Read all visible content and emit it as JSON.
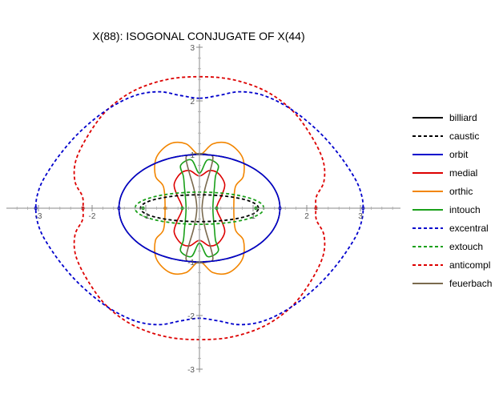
{
  "chart_data": {
    "type": "line",
    "title": "X(88): ISOGONAL CONJUGATE OF X(44)",
    "xlabel": "",
    "ylabel": "",
    "xlim": [
      -3.5,
      3.8
    ],
    "ylim": [
      -3.1,
      3.0
    ],
    "x_ticks": [
      {
        "value": -3,
        "label": "-3"
      },
      {
        "value": -2,
        "label": "-2"
      },
      {
        "value": -1,
        "label": "-1"
      },
      {
        "value": 1,
        "label": "1"
      },
      {
        "value": 2,
        "label": "2"
      },
      {
        "value": 3,
        "label": "3"
      }
    ],
    "y_ticks": [
      {
        "value": -3,
        "label": "-3"
      },
      {
        "value": -2,
        "label": "-2"
      },
      {
        "value": -1,
        "label": "-1"
      },
      {
        "value": 1,
        "label": "1"
      },
      {
        "value": 2,
        "label": "2"
      },
      {
        "value": 3,
        "label": "3"
      }
    ],
    "grid": false,
    "legend_position": "right",
    "series": [
      {
        "name": "billiard",
        "color": "#000000",
        "dashed": false,
        "kind": "ellipse",
        "a": 1.5,
        "b": 1.0
      },
      {
        "name": "caustic",
        "color": "#000000",
        "dashed": true,
        "kind": "ellipse",
        "a": 1.1,
        "b": 0.25
      },
      {
        "name": "orbit",
        "color": "#0000cc",
        "dashed": false,
        "kind": "ellipse",
        "a": 1.5,
        "b": 1.0
      },
      {
        "name": "medial",
        "color": "#dd0000",
        "dashed": false,
        "points": [
          [
            0,
            0.6
          ],
          [
            0.18,
            0.7
          ],
          [
            0.35,
            0.65
          ],
          [
            0.47,
            0.45
          ],
          [
            0.42,
            0.25
          ],
          [
            0.35,
            0.1
          ],
          [
            0.32,
            0.0
          ],
          [
            0.35,
            -0.1
          ],
          [
            0.42,
            -0.25
          ],
          [
            0.47,
            -0.45
          ],
          [
            0.35,
            -0.65
          ],
          [
            0.18,
            -0.7
          ],
          [
            0,
            -0.6
          ],
          [
            -0.18,
            -0.7
          ],
          [
            -0.35,
            -0.65
          ],
          [
            -0.47,
            -0.45
          ],
          [
            -0.42,
            -0.25
          ],
          [
            -0.35,
            -0.1
          ],
          [
            -0.32,
            0.0
          ],
          [
            -0.35,
            0.1
          ],
          [
            -0.42,
            0.25
          ],
          [
            -0.47,
            0.45
          ],
          [
            -0.35,
            0.65
          ],
          [
            -0.18,
            0.7
          ],
          [
            0,
            0.6
          ]
        ]
      },
      {
        "name": "orthic",
        "color": "#f28500",
        "dashed": false,
        "points": [
          [
            0,
            1.0
          ],
          [
            0.25,
            1.2
          ],
          [
            0.55,
            1.2
          ],
          [
            0.8,
            0.95
          ],
          [
            0.82,
            0.6
          ],
          [
            0.67,
            0.4
          ],
          [
            0.64,
            0.0
          ],
          [
            0.67,
            -0.4
          ],
          [
            0.82,
            -0.6
          ],
          [
            0.8,
            -0.95
          ],
          [
            0.55,
            -1.2
          ],
          [
            0.25,
            -1.2
          ],
          [
            0,
            -1.0
          ],
          [
            -0.25,
            -1.2
          ],
          [
            -0.55,
            -1.2
          ],
          [
            -0.8,
            -0.95
          ],
          [
            -0.82,
            -0.6
          ],
          [
            -0.67,
            -0.4
          ],
          [
            -0.64,
            0.0
          ],
          [
            -0.67,
            0.4
          ],
          [
            -0.82,
            0.6
          ],
          [
            -0.8,
            0.95
          ],
          [
            -0.55,
            1.2
          ],
          [
            -0.25,
            1.2
          ],
          [
            0,
            1.0
          ]
        ]
      },
      {
        "name": "intouch",
        "color": "#1aa01a",
        "dashed": false,
        "points": [
          [
            0,
            0.65
          ],
          [
            0.15,
            0.9
          ],
          [
            0.35,
            0.8
          ],
          [
            0.3,
            0.6
          ],
          [
            0.28,
            0.4
          ],
          [
            0.25,
            0.0
          ],
          [
            0.28,
            -0.4
          ],
          [
            0.3,
            -0.6
          ],
          [
            0.35,
            -0.8
          ],
          [
            0.15,
            -0.9
          ],
          [
            0,
            -0.65
          ],
          [
            -0.15,
            -0.9
          ],
          [
            -0.35,
            -0.8
          ],
          [
            -0.3,
            -0.6
          ],
          [
            -0.28,
            -0.4
          ],
          [
            -0.25,
            0.0
          ],
          [
            -0.28,
            0.4
          ],
          [
            -0.3,
            0.6
          ],
          [
            -0.35,
            0.8
          ],
          [
            -0.15,
            0.9
          ],
          [
            0,
            0.65
          ]
        ]
      },
      {
        "name": "excentral",
        "color": "#0000cc",
        "dashed": true,
        "points": [
          [
            0,
            2.05
          ],
          [
            0.35,
            2.1
          ],
          [
            0.75,
            2.17
          ],
          [
            1.2,
            2.1
          ],
          [
            1.7,
            1.85
          ],
          [
            2.2,
            1.45
          ],
          [
            2.6,
            1.0
          ],
          [
            2.9,
            0.55
          ],
          [
            3.02,
            0.25
          ],
          [
            3.05,
            0.0
          ],
          [
            3.02,
            -0.25
          ],
          [
            2.9,
            -0.55
          ],
          [
            2.6,
            -1.0
          ],
          [
            2.2,
            -1.45
          ],
          [
            1.7,
            -1.85
          ],
          [
            1.2,
            -2.1
          ],
          [
            0.75,
            -2.17
          ],
          [
            0.35,
            -2.1
          ],
          [
            0,
            -2.05
          ],
          [
            -0.35,
            -2.1
          ],
          [
            -0.75,
            -2.17
          ],
          [
            -1.2,
            -2.1
          ],
          [
            -1.7,
            -1.85
          ],
          [
            -2.2,
            -1.45
          ],
          [
            -2.6,
            -1.0
          ],
          [
            -2.9,
            -0.55
          ],
          [
            -3.02,
            -0.25
          ],
          [
            -3.05,
            0.0
          ],
          [
            -3.02,
            0.25
          ],
          [
            -2.9,
            0.55
          ],
          [
            -2.6,
            1.0
          ],
          [
            -2.2,
            1.45
          ],
          [
            -1.7,
            1.85
          ],
          [
            -1.2,
            2.1
          ],
          [
            -0.75,
            2.17
          ],
          [
            -0.35,
            2.1
          ],
          [
            0,
            2.05
          ]
        ]
      },
      {
        "name": "extouch",
        "color": "#1aa01a",
        "dashed": true,
        "kind": "ellipse",
        "a": 1.2,
        "b": 0.3
      },
      {
        "name": "anticompl",
        "color": "#dd0000",
        "dashed": true,
        "points": [
          [
            0,
            2.45
          ],
          [
            0.6,
            2.4
          ],
          [
            1.2,
            2.2
          ],
          [
            1.7,
            1.85
          ],
          [
            2.05,
            1.4
          ],
          [
            2.3,
            0.9
          ],
          [
            2.32,
            0.5
          ],
          [
            2.18,
            0.22
          ],
          [
            2.17,
            0.0
          ],
          [
            2.18,
            -0.22
          ],
          [
            2.32,
            -0.5
          ],
          [
            2.3,
            -0.9
          ],
          [
            2.05,
            -1.4
          ],
          [
            1.7,
            -1.85
          ],
          [
            1.2,
            -2.2
          ],
          [
            0.6,
            -2.4
          ],
          [
            0,
            -2.45
          ],
          [
            -0.6,
            -2.4
          ],
          [
            -1.2,
            -2.2
          ],
          [
            -1.7,
            -1.85
          ],
          [
            -2.05,
            -1.4
          ],
          [
            -2.3,
            -0.9
          ],
          [
            -2.32,
            -0.5
          ],
          [
            -2.18,
            -0.22
          ],
          [
            -2.17,
            0.0
          ],
          [
            -2.18,
            0.22
          ],
          [
            -2.32,
            0.5
          ],
          [
            -2.3,
            0.9
          ],
          [
            -2.05,
            1.4
          ],
          [
            -1.7,
            1.85
          ],
          [
            -1.2,
            2.2
          ],
          [
            -0.6,
            2.4
          ],
          [
            0,
            2.45
          ]
        ]
      },
      {
        "name": "feuerbach",
        "color": "#7a6a4e",
        "dashed": false,
        "points": [
          [
            -0.25,
            0.95
          ],
          [
            -0.15,
            1.0
          ],
          [
            0.0,
            1.02
          ],
          [
            0.15,
            1.0
          ],
          [
            0.25,
            0.95
          ],
          [
            0.2,
            0.7
          ],
          [
            0.1,
            0.35
          ],
          [
            0.05,
            0.0
          ],
          [
            0.1,
            -0.35
          ],
          [
            0.2,
            -0.7
          ],
          [
            0.25,
            -0.95
          ],
          [
            0.15,
            -1.0
          ],
          [
            0.0,
            -1.02
          ],
          [
            -0.15,
            -1.0
          ],
          [
            -0.25,
            -0.95
          ],
          [
            -0.2,
            -0.7
          ],
          [
            -0.1,
            -0.35
          ],
          [
            -0.05,
            0.0
          ],
          [
            -0.1,
            0.35
          ],
          [
            -0.2,
            0.7
          ],
          [
            -0.25,
            0.95
          ]
        ]
      }
    ],
    "marked_points": [
      {
        "x": 3.05,
        "y": 0.0,
        "color": "#0000cc"
      },
      {
        "x": -3.05,
        "y": 0.0,
        "color": "#0000cc"
      },
      {
        "x": 2.17,
        "y": 0.0,
        "color": "#dd0000"
      },
      {
        "x": -2.17,
        "y": 0.0,
        "color": "#dd0000"
      },
      {
        "x": 1.5,
        "y": 0.0,
        "color": "#0000cc"
      },
      {
        "x": -1.5,
        "y": 0.0,
        "color": "#0000cc"
      },
      {
        "x": 1.05,
        "y": 0.0,
        "color": "#1aa01a"
      },
      {
        "x": -1.05,
        "y": 0.0,
        "color": "#1aa01a"
      },
      {
        "x": -0.64,
        "y": 0.0,
        "color": "#f28500"
      },
      {
        "x": 0.32,
        "y": 0.0,
        "color": "#1aa01a"
      },
      {
        "x": -0.32,
        "y": 0.0,
        "color": "#1aa01a"
      }
    ]
  }
}
